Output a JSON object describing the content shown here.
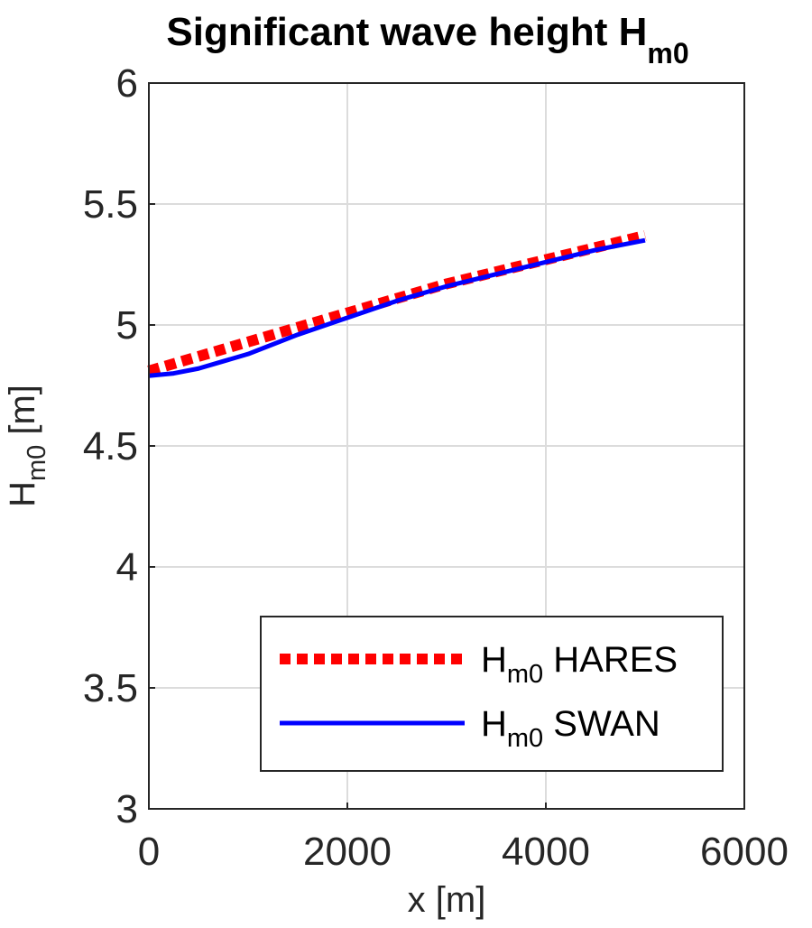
{
  "chart_data": {
    "type": "line",
    "title": "Significant wave height H",
    "title_subscript": "m0",
    "xlabel": "x [m]",
    "ylabel": "H",
    "ylabel_subscript": "m0",
    "ylabel_unit": " [m]",
    "xlim": [
      0,
      6000
    ],
    "ylim": [
      3,
      6
    ],
    "xticks": [
      0,
      2000,
      4000,
      6000
    ],
    "yticks": [
      3,
      3.5,
      4,
      4.5,
      5,
      5.5,
      6
    ],
    "xtick_labels": [
      "0",
      "2000",
      "4000",
      "6000"
    ],
    "ytick_labels": [
      "3",
      "3.5",
      "4",
      "4.5",
      "5",
      "5.5",
      "6"
    ],
    "grid": true,
    "legend_position": "bottom-right",
    "series": [
      {
        "name": "H",
        "name_subscript": "m0",
        "name_suffix": " HARES",
        "color": "#ff0000",
        "style": "dotted",
        "x": [
          0,
          500,
          1000,
          1500,
          2000,
          2500,
          3000,
          3500,
          4000,
          4500,
          5000
        ],
        "y": [
          4.81,
          4.87,
          4.93,
          4.99,
          5.05,
          5.11,
          5.17,
          5.22,
          5.27,
          5.32,
          5.37
        ]
      },
      {
        "name": "H",
        "name_subscript": "m0",
        "name_suffix": " SWAN",
        "color": "#0000ff",
        "style": "solid",
        "x": [
          0,
          250,
          500,
          750,
          1000,
          1500,
          2000,
          2500,
          3000,
          3500,
          4000,
          4500,
          5000
        ],
        "y": [
          4.79,
          4.8,
          4.82,
          4.85,
          4.88,
          4.96,
          5.03,
          5.1,
          5.16,
          5.21,
          5.26,
          5.31,
          5.35
        ]
      }
    ]
  }
}
